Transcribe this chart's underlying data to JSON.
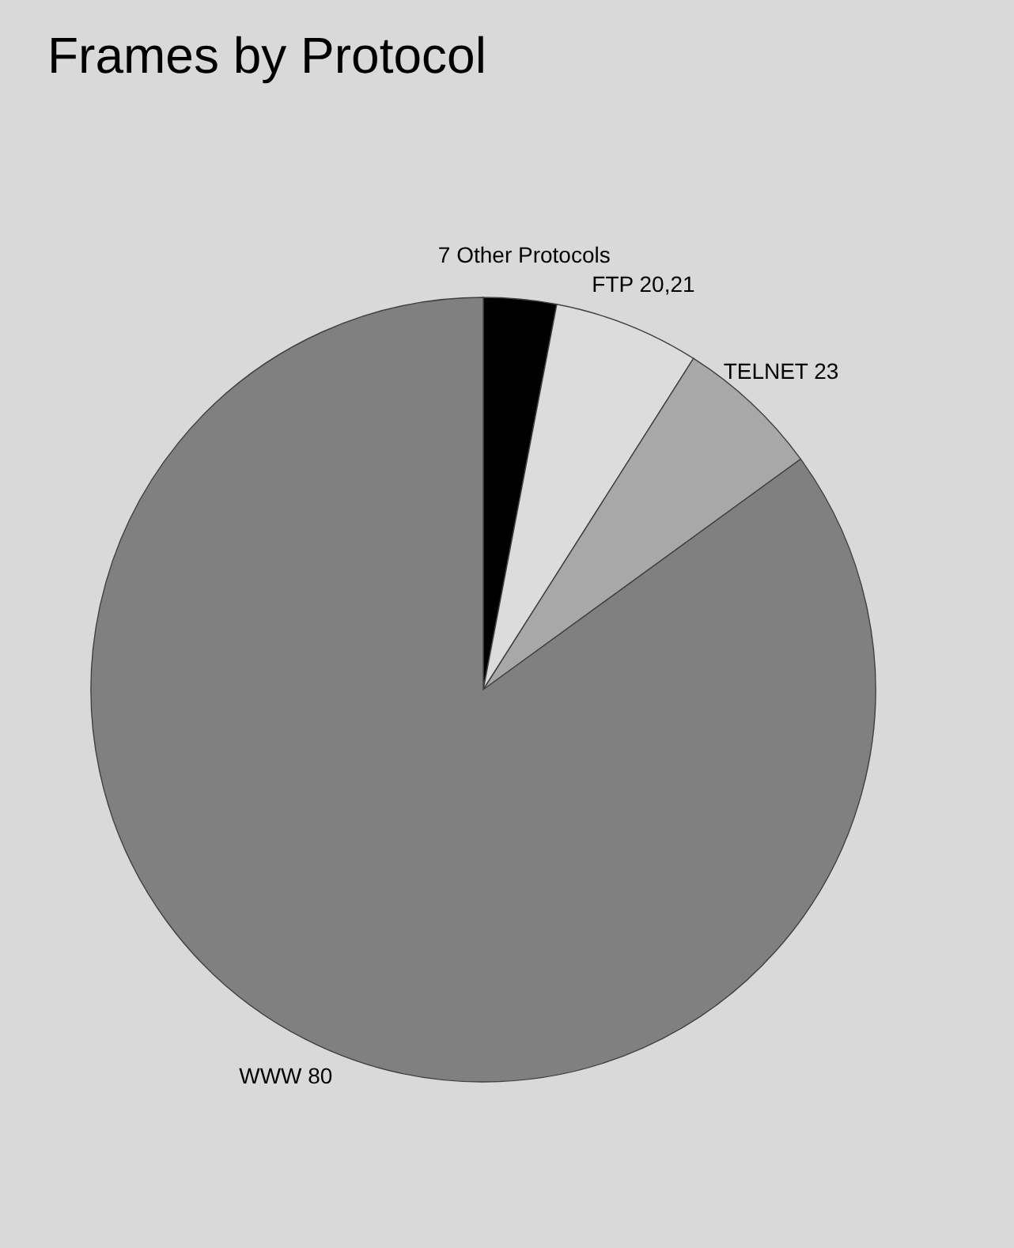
{
  "chart_data": {
    "type": "pie",
    "title": "Frames by Protocol",
    "categories": [
      "7 Other Protocols",
      "FTP 20,21",
      "TELNET 23",
      "WWW 80"
    ],
    "values": [
      3,
      6,
      6,
      85
    ],
    "colors": [
      "#000000",
      "#dcdcdc",
      "#a8a8a8",
      "#808080"
    ]
  }
}
